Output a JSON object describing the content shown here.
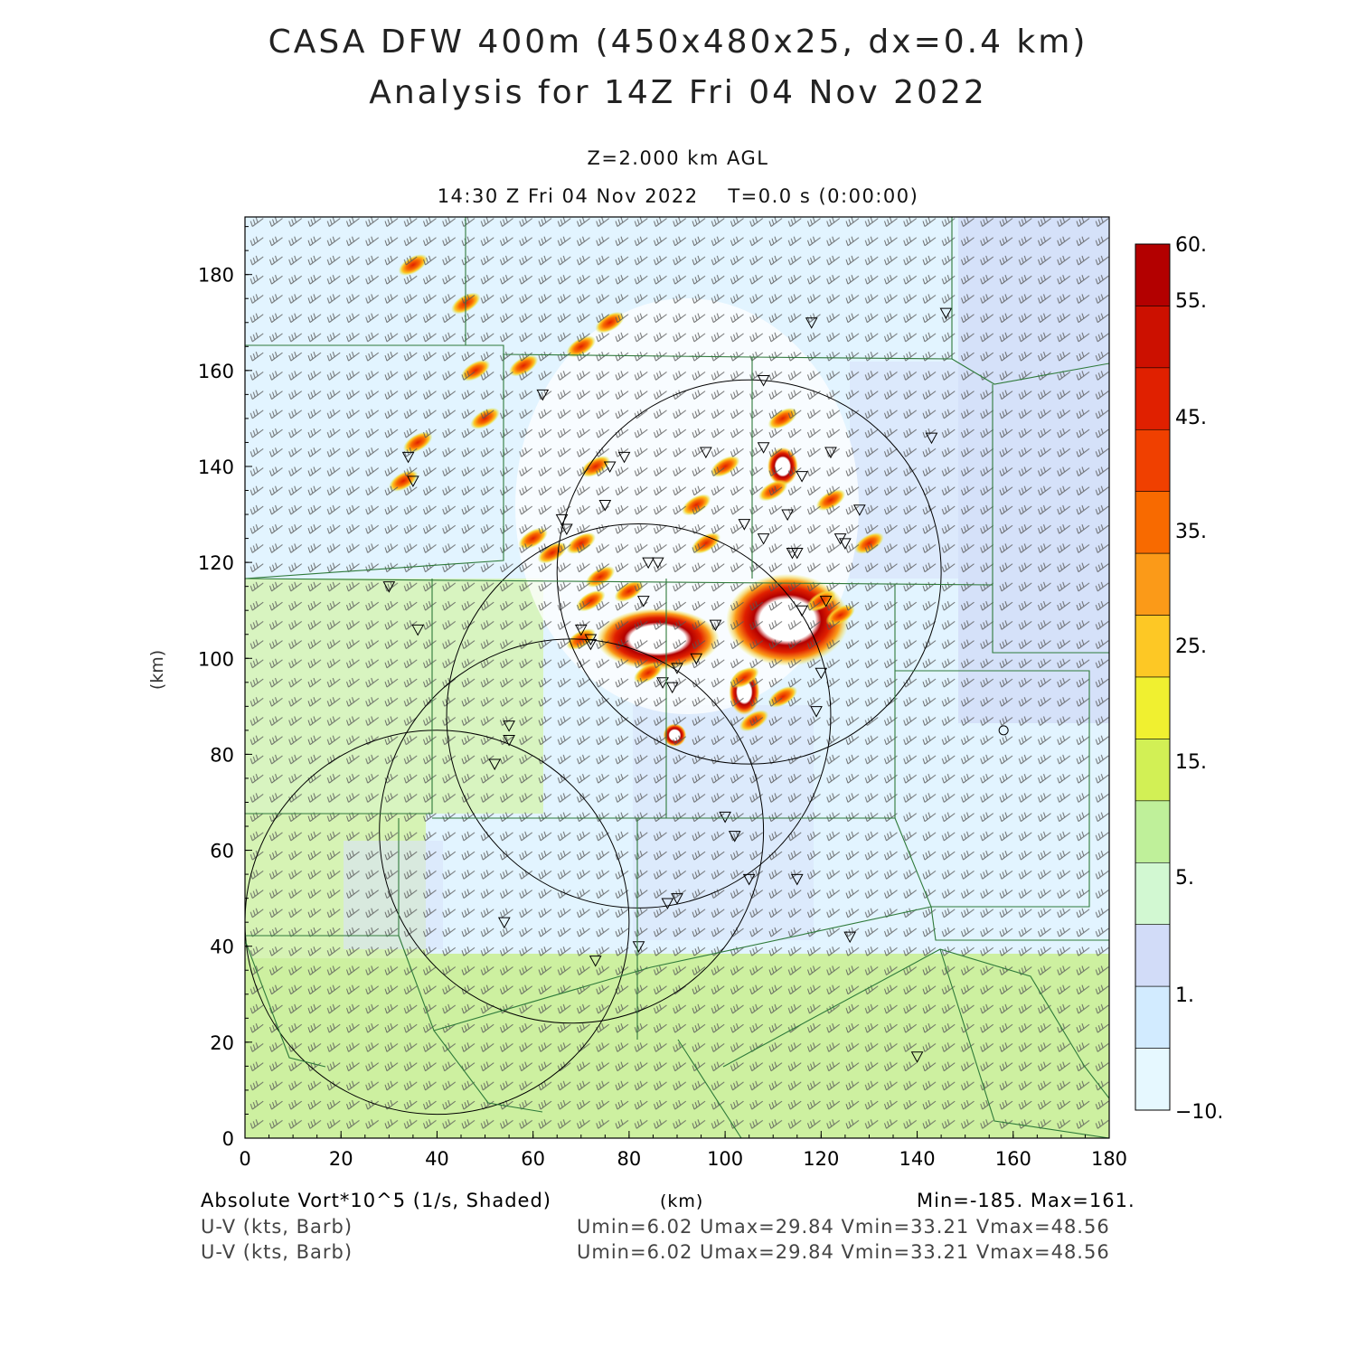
{
  "header": {
    "title_line1": "CASA DFW 400m (450x480x25, dx=0.4 km)",
    "title_line2": "Analysis for 14Z Fri 04 Nov 2022",
    "level": "Z=2.000 km AGL",
    "time": "14:30 Z Fri 04 Nov 2022    T=0.0 s (0:00:00)"
  },
  "axes": {
    "x_label": "(km)",
    "y_label": "(km)",
    "x_ticks": [
      "0",
      "20",
      "40",
      "60",
      "80",
      "100",
      "120",
      "140",
      "160",
      "180"
    ],
    "y_ticks": [
      "0",
      "20",
      "40",
      "60",
      "80",
      "100",
      "120",
      "140",
      "160",
      "180"
    ],
    "x_range": [
      0,
      180
    ],
    "y_range": [
      0,
      192
    ]
  },
  "colorbar": {
    "labels": [
      "60.",
      "55.",
      "45.",
      "35.",
      "25.",
      "15.",
      "5.",
      "1.",
      "-10."
    ],
    "colors": [
      "#b30000",
      "#cc1000",
      "#e02000",
      "#f04000",
      "#f86a00",
      "#fb9a18",
      "#fdc825",
      "#f0f030",
      "#d2f055",
      "#bff09a",
      "#d2f8d2",
      "#d2dcf8",
      "#d2ebff",
      "#e6f8ff"
    ]
  },
  "footer": {
    "field": "Absolute Vort*10^5 (1/s, Shaded)",
    "x_unit": "(km)",
    "minmax": "Min=-185. Max=161.",
    "barb1": "U-V (kts, Barb)",
    "barb1_stats": "Umin=6.02 Umax=29.84 Vmin=33.21 Vmax=48.56",
    "barb2": "U-V (kts, Barb)",
    "barb2_stats": "Umin=6.02 Umax=29.84 Vmin=33.21 Vmax=48.56"
  },
  "map": {
    "radar_rings": [
      {
        "cx": 105,
        "cy": 118,
        "r": 40
      },
      {
        "cx": 82,
        "cy": 88,
        "r": 40
      },
      {
        "cx": 68,
        "cy": 64,
        "r": 40
      },
      {
        "cx": 40,
        "cy": 45,
        "r": 40
      }
    ],
    "stations": [
      [
        30,
        115
      ],
      [
        34,
        142
      ],
      [
        35,
        137
      ],
      [
        36,
        106
      ],
      [
        62,
        155
      ],
      [
        66,
        129
      ],
      [
        67,
        127
      ],
      [
        70,
        106
      ],
      [
        72,
        104
      ],
      [
        72,
        103
      ],
      [
        75,
        132
      ],
      [
        76,
        140
      ],
      [
        79,
        142
      ],
      [
        83,
        112
      ],
      [
        84,
        120
      ],
      [
        86,
        120
      ],
      [
        87,
        95
      ],
      [
        89,
        94
      ],
      [
        90,
        98
      ],
      [
        94,
        100
      ],
      [
        96,
        143
      ],
      [
        98,
        107
      ],
      [
        104,
        128
      ],
      [
        105,
        54
      ],
      [
        108,
        125
      ],
      [
        108,
        144
      ],
      [
        108,
        158
      ],
      [
        113,
        130
      ],
      [
        114,
        122
      ],
      [
        115,
        122
      ],
      [
        116,
        110
      ],
      [
        116,
        138
      ],
      [
        119,
        89
      ],
      [
        120,
        97
      ],
      [
        121,
        112
      ],
      [
        122,
        143
      ],
      [
        124,
        125
      ],
      [
        125,
        124
      ],
      [
        126,
        42
      ],
      [
        128,
        131
      ],
      [
        140,
        17
      ],
      [
        143,
        146
      ],
      [
        146,
        172
      ],
      [
        118,
        170
      ],
      [
        55,
        86
      ],
      [
        55,
        83
      ],
      [
        52,
        78
      ],
      [
        54,
        45
      ],
      [
        73,
        37
      ],
      [
        82,
        40
      ],
      [
        90,
        50
      ],
      [
        88,
        49
      ],
      [
        100,
        67
      ],
      [
        102,
        63
      ],
      [
        115,
        54
      ]
    ],
    "circle_marker": [
      158,
      85
    ],
    "vorticity_max_regions": [
      {
        "x": 78,
        "y": 104,
        "w": 16,
        "h": 8
      },
      {
        "x": 105,
        "y": 108,
        "w": 16,
        "h": 12
      },
      {
        "x": 102,
        "y": 93,
        "w": 4,
        "h": 6
      },
      {
        "x": 88,
        "y": 84,
        "w": 3,
        "h": 3
      },
      {
        "x": 110,
        "y": 140,
        "w": 4,
        "h": 5
      }
    ]
  }
}
